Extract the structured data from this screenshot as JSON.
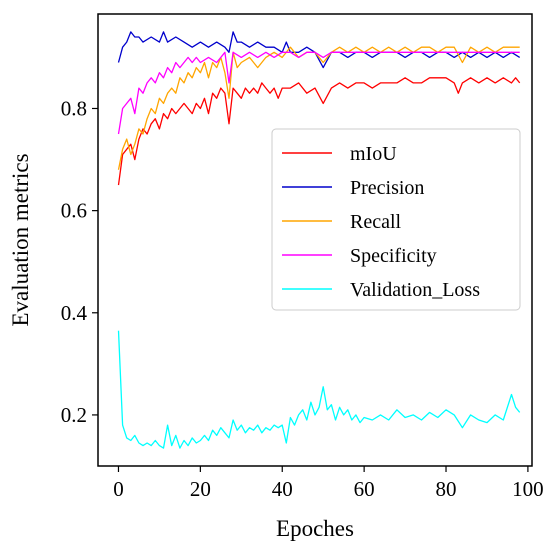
{
  "chart_data": {
    "type": "line",
    "title": "",
    "xlabel": "Epoches",
    "ylabel": "Evaluation metrics",
    "xlim": [
      -5,
      101
    ],
    "ylim": [
      0.1,
      0.985
    ],
    "xticks": [
      0,
      20,
      40,
      60,
      80,
      100
    ],
    "yticks": [
      0.2,
      0.4,
      0.6,
      0.8
    ],
    "xtick_labels": [
      "0",
      "20",
      "40",
      "60",
      "80",
      "100"
    ],
    "ytick_labels": [
      "0.2",
      "0.4",
      "0.6",
      "0.8"
    ],
    "grid": false,
    "legend_position": "center-right",
    "series": [
      {
        "name": "mIoU",
        "color": "#ff0000",
        "x": [
          0,
          1,
          2,
          3,
          4,
          5,
          6,
          7,
          8,
          9,
          10,
          11,
          12,
          13,
          14,
          15,
          16,
          17,
          18,
          19,
          20,
          21,
          22,
          23,
          24,
          25,
          26,
          27,
          28,
          29,
          30,
          31,
          32,
          33,
          34,
          35,
          36,
          37,
          38,
          39,
          40,
          42,
          44,
          46,
          48,
          50,
          52,
          54,
          56,
          58,
          60,
          62,
          64,
          66,
          68,
          70,
          72,
          74,
          76,
          78,
          80,
          82,
          83,
          84,
          86,
          88,
          90,
          92,
          94,
          96,
          97,
          98
        ],
        "y": [
          0.65,
          0.71,
          0.72,
          0.73,
          0.7,
          0.74,
          0.76,
          0.75,
          0.77,
          0.78,
          0.76,
          0.79,
          0.78,
          0.8,
          0.79,
          0.8,
          0.81,
          0.8,
          0.79,
          0.81,
          0.8,
          0.82,
          0.79,
          0.83,
          0.82,
          0.84,
          0.83,
          0.77,
          0.84,
          0.83,
          0.82,
          0.84,
          0.83,
          0.84,
          0.83,
          0.85,
          0.84,
          0.83,
          0.84,
          0.82,
          0.84,
          0.84,
          0.85,
          0.83,
          0.84,
          0.81,
          0.84,
          0.85,
          0.84,
          0.85,
          0.85,
          0.84,
          0.85,
          0.85,
          0.85,
          0.86,
          0.85,
          0.85,
          0.86,
          0.86,
          0.86,
          0.85,
          0.83,
          0.85,
          0.86,
          0.85,
          0.86,
          0.85,
          0.86,
          0.85,
          0.86,
          0.85
        ]
      },
      {
        "name": "Precision",
        "color": "#0000cc",
        "x": [
          0,
          1,
          2,
          3,
          4,
          5,
          6,
          8,
          10,
          11,
          12,
          14,
          16,
          18,
          20,
          22,
          24,
          26,
          27,
          28,
          29,
          30,
          32,
          34,
          36,
          38,
          40,
          41,
          42,
          44,
          46,
          48,
          50,
          52,
          54,
          56,
          58,
          60,
          62,
          64,
          66,
          68,
          70,
          72,
          74,
          76,
          78,
          80,
          82,
          84,
          86,
          88,
          90,
          92,
          94,
          96,
          98
        ],
        "y": [
          0.89,
          0.92,
          0.93,
          0.95,
          0.94,
          0.94,
          0.93,
          0.94,
          0.93,
          0.95,
          0.93,
          0.94,
          0.93,
          0.92,
          0.93,
          0.92,
          0.93,
          0.92,
          0.91,
          0.95,
          0.93,
          0.93,
          0.92,
          0.93,
          0.92,
          0.92,
          0.91,
          0.93,
          0.91,
          0.91,
          0.92,
          0.91,
          0.88,
          0.91,
          0.91,
          0.9,
          0.91,
          0.91,
          0.9,
          0.91,
          0.91,
          0.91,
          0.9,
          0.91,
          0.91,
          0.9,
          0.91,
          0.91,
          0.9,
          0.91,
          0.9,
          0.91,
          0.9,
          0.91,
          0.9,
          0.91,
          0.9
        ]
      },
      {
        "name": "Recall",
        "color": "#ffa500",
        "x": [
          0,
          1,
          2,
          3,
          4,
          5,
          6,
          7,
          8,
          9,
          10,
          11,
          12,
          13,
          14,
          15,
          16,
          17,
          18,
          19,
          20,
          21,
          22,
          23,
          24,
          25,
          26,
          27,
          28,
          29,
          30,
          32,
          34,
          36,
          38,
          40,
          42,
          44,
          46,
          48,
          50,
          52,
          54,
          56,
          58,
          60,
          62,
          64,
          66,
          68,
          70,
          72,
          74,
          76,
          78,
          80,
          82,
          84,
          86,
          88,
          90,
          92,
          94,
          96,
          98
        ],
        "y": [
          0.68,
          0.72,
          0.74,
          0.71,
          0.73,
          0.76,
          0.75,
          0.78,
          0.8,
          0.79,
          0.82,
          0.81,
          0.83,
          0.84,
          0.83,
          0.86,
          0.85,
          0.87,
          0.86,
          0.88,
          0.87,
          0.89,
          0.86,
          0.89,
          0.88,
          0.9,
          0.87,
          0.82,
          0.91,
          0.88,
          0.89,
          0.9,
          0.88,
          0.9,
          0.91,
          0.9,
          0.92,
          0.9,
          0.91,
          0.91,
          0.89,
          0.91,
          0.92,
          0.91,
          0.92,
          0.91,
          0.92,
          0.91,
          0.92,
          0.91,
          0.92,
          0.91,
          0.92,
          0.92,
          0.91,
          0.92,
          0.92,
          0.89,
          0.92,
          0.91,
          0.92,
          0.91,
          0.92,
          0.92,
          0.92
        ]
      },
      {
        "name": "Specificity",
        "color": "#ff00ff",
        "x": [
          0,
          1,
          2,
          3,
          4,
          5,
          6,
          7,
          8,
          9,
          10,
          11,
          12,
          13,
          14,
          15,
          16,
          17,
          18,
          19,
          20,
          22,
          24,
          26,
          27,
          28,
          30,
          32,
          34,
          36,
          38,
          40,
          42,
          44,
          46,
          48,
          50,
          52,
          54,
          56,
          58,
          60,
          62,
          64,
          66,
          68,
          70,
          72,
          74,
          76,
          78,
          80,
          82,
          84,
          86,
          88,
          90,
          92,
          94,
          96,
          98
        ],
        "y": [
          0.75,
          0.8,
          0.81,
          0.82,
          0.79,
          0.84,
          0.83,
          0.85,
          0.86,
          0.85,
          0.87,
          0.86,
          0.88,
          0.87,
          0.89,
          0.88,
          0.89,
          0.9,
          0.89,
          0.9,
          0.89,
          0.9,
          0.89,
          0.91,
          0.85,
          0.91,
          0.9,
          0.91,
          0.9,
          0.91,
          0.9,
          0.91,
          0.91,
          0.9,
          0.91,
          0.91,
          0.9,
          0.91,
          0.91,
          0.91,
          0.91,
          0.91,
          0.91,
          0.91,
          0.91,
          0.91,
          0.91,
          0.91,
          0.91,
          0.91,
          0.91,
          0.91,
          0.91,
          0.91,
          0.91,
          0.91,
          0.91,
          0.91,
          0.91,
          0.91,
          0.91
        ]
      },
      {
        "name": "Validation_Loss",
        "color": "#00ffff",
        "x": [
          0,
          1,
          2,
          3,
          4,
          5,
          6,
          7,
          8,
          9,
          10,
          11,
          12,
          13,
          14,
          15,
          16,
          17,
          18,
          19,
          20,
          21,
          22,
          23,
          24,
          25,
          26,
          27,
          28,
          29,
          30,
          31,
          32,
          33,
          34,
          35,
          36,
          37,
          38,
          39,
          40,
          41,
          42,
          43,
          44,
          45,
          46,
          47,
          48,
          49,
          50,
          51,
          52,
          53,
          54,
          55,
          56,
          57,
          58,
          59,
          60,
          62,
          64,
          66,
          68,
          70,
          72,
          74,
          76,
          78,
          80,
          82,
          84,
          86,
          88,
          90,
          92,
          94,
          96,
          97,
          98
        ],
        "y": [
          0.365,
          0.18,
          0.155,
          0.15,
          0.16,
          0.145,
          0.14,
          0.145,
          0.14,
          0.15,
          0.14,
          0.135,
          0.18,
          0.14,
          0.16,
          0.135,
          0.15,
          0.14,
          0.155,
          0.145,
          0.15,
          0.16,
          0.15,
          0.17,
          0.16,
          0.175,
          0.165,
          0.155,
          0.19,
          0.17,
          0.18,
          0.165,
          0.175,
          0.17,
          0.18,
          0.165,
          0.175,
          0.17,
          0.18,
          0.175,
          0.18,
          0.145,
          0.195,
          0.18,
          0.2,
          0.21,
          0.19,
          0.225,
          0.2,
          0.215,
          0.255,
          0.21,
          0.22,
          0.19,
          0.215,
          0.2,
          0.21,
          0.19,
          0.2,
          0.185,
          0.195,
          0.19,
          0.2,
          0.19,
          0.21,
          0.195,
          0.2,
          0.19,
          0.205,
          0.195,
          0.21,
          0.2,
          0.175,
          0.2,
          0.19,
          0.185,
          0.2,
          0.19,
          0.24,
          0.215,
          0.205
        ]
      }
    ]
  }
}
